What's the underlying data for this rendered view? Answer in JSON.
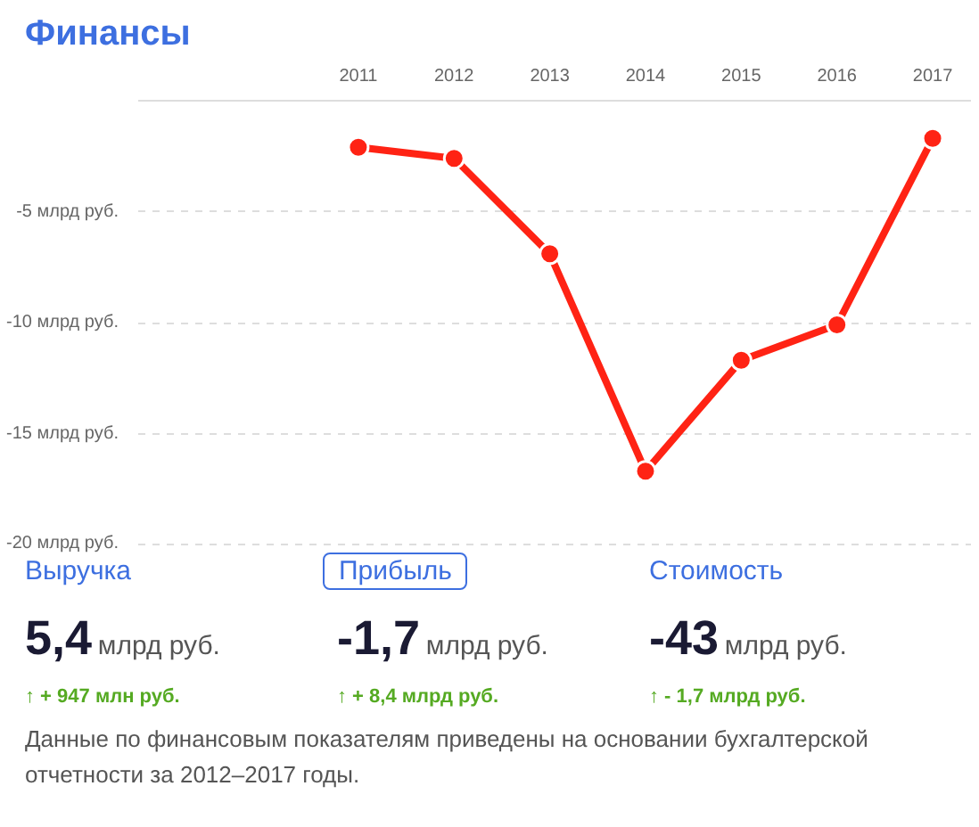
{
  "chart_data": {
    "type": "line",
    "title": "Финансы",
    "categories": [
      "2011",
      "2012",
      "2013",
      "2014",
      "2015",
      "2016",
      "2017"
    ],
    "series": [
      {
        "color": "#ff2314",
        "values": [
          -2.1,
          -2.6,
          -6.9,
          -16.7,
          -11.7,
          -10.1,
          -1.7
        ]
      }
    ],
    "ylim": [
      -20,
      0
    ],
    "yticks": [
      {
        "value": 0,
        "label": null
      },
      {
        "value": -5,
        "label": "-5 млрд руб."
      },
      {
        "value": -10,
        "label": "-10 млрд руб."
      },
      {
        "value": -15,
        "label": "-15 млрд руб."
      },
      {
        "value": -20,
        "label": "-20 млрд руб."
      }
    ],
    "grid": "y",
    "marker": "circle",
    "line_style": "solid",
    "annotations": [
      "Выручка",
      "5,4",
      "млрд руб.",
      "↑ + 947 млн руб.",
      "Прибыль",
      "-1,7",
      "млрд руб.",
      "↑ + 8,4 млрд руб.",
      "Стоимость",
      "-43",
      "млрд руб.",
      "↑ - 1,7 млрд руб.",
      "Данные по финансовым показателям приведены на основании бухгалтерской отчетности за 2012–2017 годы."
    ]
  }
}
